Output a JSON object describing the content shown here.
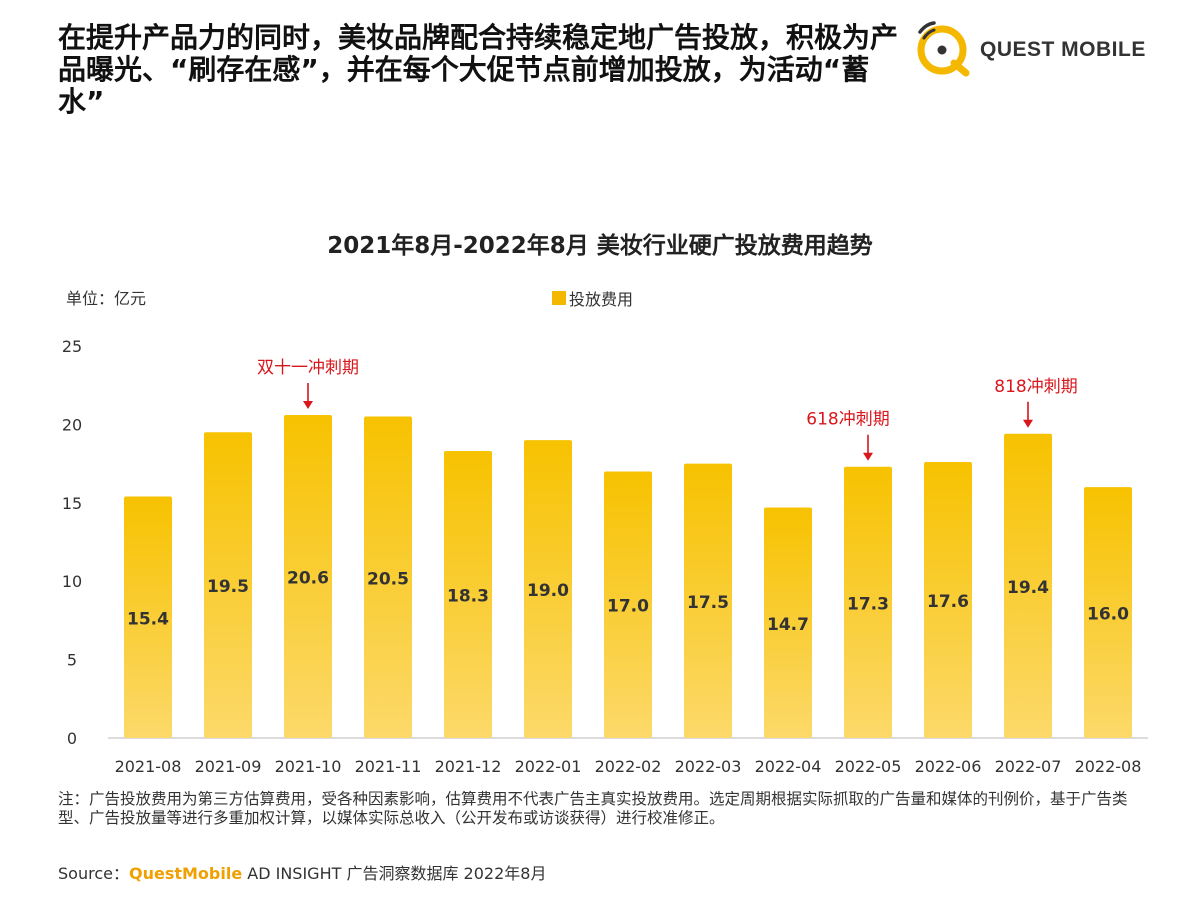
{
  "headline": "在提升产品力的同时，美妆品牌配合持续稳定地广告投放，积极为产品曝光、“刷存在感”，并在每个大促节点前增加投放，为活动“蓄水”",
  "logo": {
    "text": "QUEST MOBILE"
  },
  "unit_label": "单位：亿元",
  "note": "注：广告投放费用为第三方估算费用，受各种因素影响，估算费用不代表广告主真实投放费用。选定周期根据实际抓取的广告量和媒体的刊例价，基于广告类型、广告投放量等进行多重加权计算，以媒体实际总收入（公开发布或访谈获得）进行校准修正。",
  "source": {
    "prefix": "Source：",
    "brand": "QuestMobile",
    "suffix": " AD INSIGHT 广告洞察数据库 2022年8月"
  },
  "colors": {
    "bar_top": "#f7c200",
    "bar_bottom": "#fcd96a",
    "annotation": "#d9161c"
  },
  "chart_data": {
    "type": "bar",
    "title": "2021年8月-2022年8月 美妆行业硬广投放费用趋势",
    "categories": [
      "2021-08",
      "2021-09",
      "2021-10",
      "2021-11",
      "2021-12",
      "2022-01",
      "2022-02",
      "2022-03",
      "2022-04",
      "2022-05",
      "2022-06",
      "2022-07",
      "2022-08"
    ],
    "series": [
      {
        "name": "投放费用",
        "values": [
          15.4,
          19.5,
          20.6,
          20.5,
          18.3,
          19.0,
          17.0,
          17.5,
          14.7,
          17.3,
          17.6,
          19.4,
          16.0
        ]
      }
    ],
    "data_labels": [
      "15.4",
      "19.5",
      "20.6",
      "20.5",
      "18.3",
      "19.0",
      "17.0",
      "17.5",
      "14.7",
      "17.3",
      "17.6",
      "19.4",
      "16.0"
    ],
    "ylim": [
      0,
      25
    ],
    "yticks": [
      0,
      5,
      10,
      15,
      20,
      25
    ],
    "ylabel": "单位：亿元",
    "xlabel": "",
    "legend_position": "top-center",
    "annotations": [
      {
        "category": "2021-10",
        "text": "双十一冲刺期"
      },
      {
        "category": "2022-05",
        "text": "618冲刺期"
      },
      {
        "category": "2022-07",
        "text": "818冲刺期"
      }
    ]
  }
}
